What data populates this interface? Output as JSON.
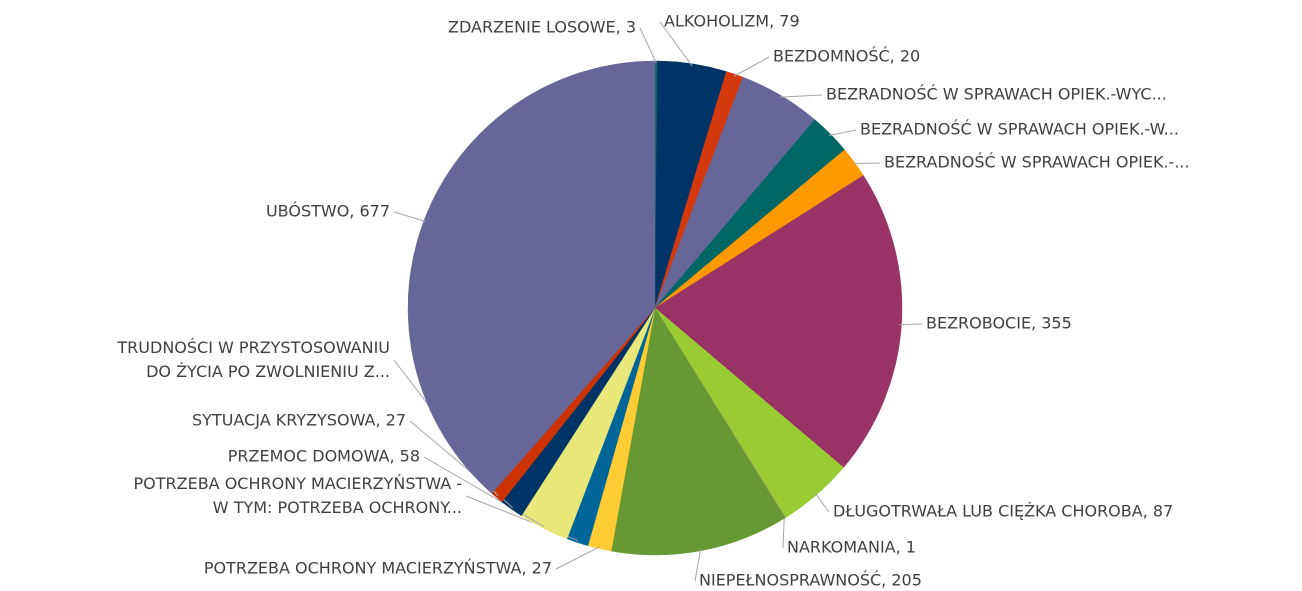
{
  "chart_data": {
    "type": "pie",
    "categories": [
      "ZDARZENIE LOSOWE, 3",
      "ALKOHOLIZM, 79",
      "BEZDOMNOŚĆ, 20",
      "BEZRADNOŚĆ W SPRAWACH OPIEK.-WYC...",
      "BEZRADNOŚĆ W SPRAWACH OPIEK.-W...",
      "BEZRADNOŚĆ W SPRAWACH OPIEK.-...",
      "BEZROBOCIE, 355",
      "DŁUGOTRWAŁA LUB CIĘŻKA CHOROBA, 87",
      "NARKOMANIA, 1",
      "NIEPEŁNOSPRAWNOŚĆ, 205",
      "POTRZEBA OCHRONY MACIERZYŃSTWA, 27",
      "POTRZEBA OCHRONY MACIERZYŃSTWA - W TYM: POTRZEBA OCHRONY...",
      "PRZEMOC DOMOWA, 58",
      "SYTUACJA KRYZYSOWA, 27",
      "TRUDNOŚCI W PRZYSTOSOWANIU DO ŻYCIA PO ZWOLNIENIU Z...",
      "UBÓSTWO, 677"
    ],
    "values": [
      3,
      79,
      20,
      95,
      48,
      36,
      355,
      87,
      1,
      205,
      27,
      25,
      58,
      27,
      15,
      677
    ],
    "colors": [
      "#00685e",
      "#003366",
      "#d4380d",
      "#666699",
      "#006666",
      "#ff9900",
      "#993366",
      "#99cc33",
      "#999966",
      "#669933",
      "#ffcc33",
      "#006699",
      "#e8e87a",
      "#003366",
      "#cc3300",
      "#666699"
    ]
  }
}
